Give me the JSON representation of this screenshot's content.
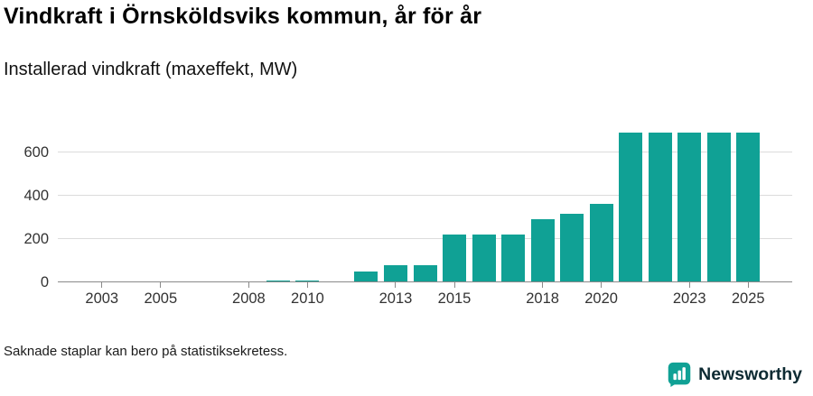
{
  "header": {
    "title": "Vindkraft i Örnsköldsviks kommun, år för år",
    "subtitle": "Installerad vindkraft (maxeffekt, MW)"
  },
  "footer": {
    "note": "Saknade staplar kan bero på statistiksekretess.",
    "brand": "Newsworthy"
  },
  "colors": {
    "bar": "#10a195",
    "grid": "#dcdcdc",
    "axis": "#8a8a8a",
    "logo": "#10a195",
    "brand_text": "#0e2b33"
  },
  "chart_data": {
    "type": "bar",
    "title": "Vindkraft i Örnsköldsviks kommun, år för år",
    "subtitle": "Installerad vindkraft (maxeffekt, MW)",
    "x": [
      2002,
      2003,
      2004,
      2005,
      2006,
      2007,
      2008,
      2009,
      2010,
      2011,
      2012,
      2013,
      2014,
      2015,
      2016,
      2017,
      2018,
      2019,
      2020,
      2021,
      2022,
      2023,
      2024,
      2025
    ],
    "values": [
      0,
      0,
      0,
      0,
      0,
      0,
      0,
      4,
      6,
      null,
      50,
      78,
      78,
      220,
      220,
      220,
      290,
      315,
      360,
      690,
      690,
      690,
      690,
      690
    ],
    "xlabel": "",
    "ylabel": "",
    "ylim": [
      0,
      740
    ],
    "yticks": [
      0,
      200,
      400,
      600
    ],
    "xticks": [
      2003,
      2005,
      2008,
      2010,
      2013,
      2015,
      2018,
      2020,
      2023,
      2025
    ],
    "grid": "horizontal",
    "legend": "none",
    "missing_note": "Saknade staplar kan bero på statistiksekretess."
  }
}
